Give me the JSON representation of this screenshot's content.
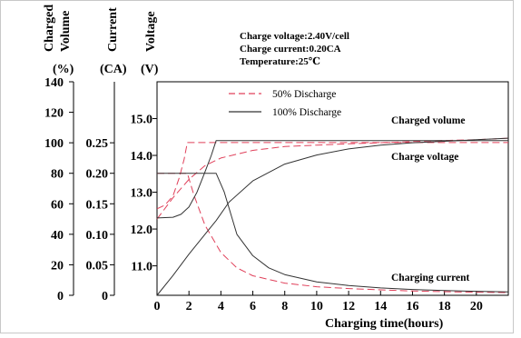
{
  "chart_data": {
    "type": "line",
    "conditions": [
      "Charge voltage:2.40V/cell",
      "Charge current:0.20CA",
      "Temperature:25℃"
    ],
    "xlabel": "Charging time(hours)",
    "x_ticks": [
      "0",
      "2",
      "4",
      "6",
      "8",
      "10",
      "12",
      "14",
      "16",
      "18",
      "20"
    ],
    "xlim": [
      0,
      22
    ],
    "axes": [
      {
        "id": "charged_volume",
        "title_lines": [
          "Charged",
          "Volume"
        ],
        "unit": "(%)",
        "ticks": [
          0,
          20,
          40,
          60,
          80,
          100,
          120,
          140
        ],
        "tick_labels": [
          "0",
          "20",
          "40",
          "60",
          "80",
          "100",
          "120",
          "140"
        ],
        "range": [
          0,
          140
        ]
      },
      {
        "id": "current",
        "title_lines": [
          "Current"
        ],
        "unit": "(CA)",
        "ticks": [
          0,
          0.05,
          0.1,
          0.15,
          0.2,
          0.25
        ],
        "tick_labels": [
          "0",
          "0.05",
          "0.10",
          "0.15",
          "0.20",
          "0.25"
        ],
        "range": [
          0,
          0.35
        ]
      },
      {
        "id": "voltage",
        "title_lines": [
          "Voltage"
        ],
        "unit": "(V)",
        "ticks": [
          11,
          12,
          13,
          14,
          15
        ],
        "tick_labels": [
          "11.0",
          "12.0",
          "13.0",
          "14.0",
          "15.0"
        ],
        "range": [
          10.2,
          16.0
        ]
      }
    ],
    "legend": [
      {
        "name": "50% Discharge",
        "color": "#e0405a",
        "dash": "dashed"
      },
      {
        "name": "100% Discharge",
        "color": "#333333",
        "dash": "solid"
      }
    ],
    "series_labels": [
      "Charged volume",
      "Charge voltage",
      "Charging current"
    ],
    "series": [
      {
        "group": "50% Discharge",
        "quantity": "Charged volume",
        "axis": "charged_volume",
        "color": "#e0405a",
        "x": [
          0,
          1,
          2,
          3,
          4,
          6,
          8,
          10,
          12,
          14,
          16,
          18,
          20,
          22
        ],
        "y": [
          50,
          64,
          76,
          85,
          90,
          95,
          97.5,
          98.5,
          99.3,
          100,
          100.8,
          101.5,
          102,
          103
        ]
      },
      {
        "group": "50% Discharge",
        "quantity": "Charge voltage",
        "axis": "voltage",
        "color": "#e0405a",
        "x": [
          0,
          0.5,
          1,
          1.4,
          1.7,
          1.9,
          2.2,
          4,
          22
        ],
        "y": [
          12.55,
          12.65,
          12.9,
          13.4,
          13.9,
          14.35,
          14.35,
          14.35,
          14.35
        ]
      },
      {
        "group": "50% Discharge",
        "quantity": "Charging current",
        "axis": "current",
        "color": "#e0405a",
        "x": [
          0,
          1.9,
          2.3,
          3,
          4,
          5,
          6,
          8,
          10,
          12,
          14,
          16,
          18,
          20,
          22
        ],
        "y": [
          0.2,
          0.2,
          0.165,
          0.115,
          0.07,
          0.045,
          0.032,
          0.02,
          0.014,
          0.011,
          0.009,
          0.007,
          0.006,
          0.005,
          0.0045
        ]
      },
      {
        "group": "100% Discharge",
        "quantity": "Charged volume",
        "axis": "charged_volume",
        "color": "#333333",
        "x": [
          0,
          1,
          2,
          3,
          3.7,
          4.5,
          6,
          8,
          10,
          12,
          14,
          16,
          18,
          20,
          22
        ],
        "y": [
          0,
          13,
          27,
          40,
          49,
          61,
          75,
          86,
          92,
          96,
          98.5,
          100,
          101,
          102,
          103
        ]
      },
      {
        "group": "100% Discharge",
        "quantity": "Charge voltage",
        "axis": "voltage",
        "color": "#333333",
        "x": [
          0,
          1,
          1.5,
          2,
          2.5,
          3,
          3.4,
          3.7,
          4,
          22
        ],
        "y": [
          12.3,
          12.32,
          12.4,
          12.6,
          13.0,
          13.55,
          14.0,
          14.4,
          14.4,
          14.4
        ]
      },
      {
        "group": "100% Discharge",
        "quantity": "Charging current",
        "axis": "current",
        "color": "#333333",
        "x": [
          0,
          3.7,
          4.2,
          5,
          6,
          7,
          8,
          10,
          12,
          14,
          16,
          18,
          20,
          22
        ],
        "y": [
          0.2,
          0.2,
          0.17,
          0.1,
          0.065,
          0.045,
          0.034,
          0.022,
          0.016,
          0.012,
          0.0095,
          0.0078,
          0.0065,
          0.0055
        ]
      }
    ]
  }
}
